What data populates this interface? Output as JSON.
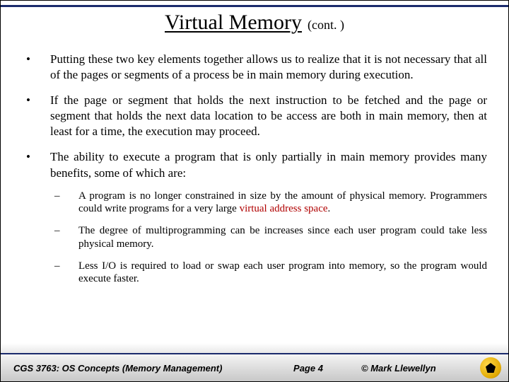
{
  "title": "Virtual Memory",
  "title_suffix": "(cont. )",
  "bullets": [
    "Putting these two key elements together allows us to realize that it is not necessary that all of the pages or segments of a process be in main memory during execution.",
    "If the page or segment that holds the next instruction to be fetched and the page or segment that holds the next data location to be access are both in main memory, then at least for a time, the execution may proceed.",
    "The ability to execute a program that is only partially in main memory provides many benefits, some of which are:"
  ],
  "sub_bullets": {
    "s0_pre": "A program is no longer constrained in size by the amount of physical memory. Programmers could write programs for a very large ",
    "s0_hl": "virtual address space",
    "s0_post": ".",
    "s1": "The degree of multiprogramming can be increases since each user program could take less physical memory.",
    "s2": "Less I/O is required to load or swap each user program into memory, so the program would execute faster."
  },
  "footer": {
    "course": "CGS 3763: OS Concepts (Memory Management)",
    "page": "Page 4",
    "copyright": "© Mark Llewellyn"
  }
}
